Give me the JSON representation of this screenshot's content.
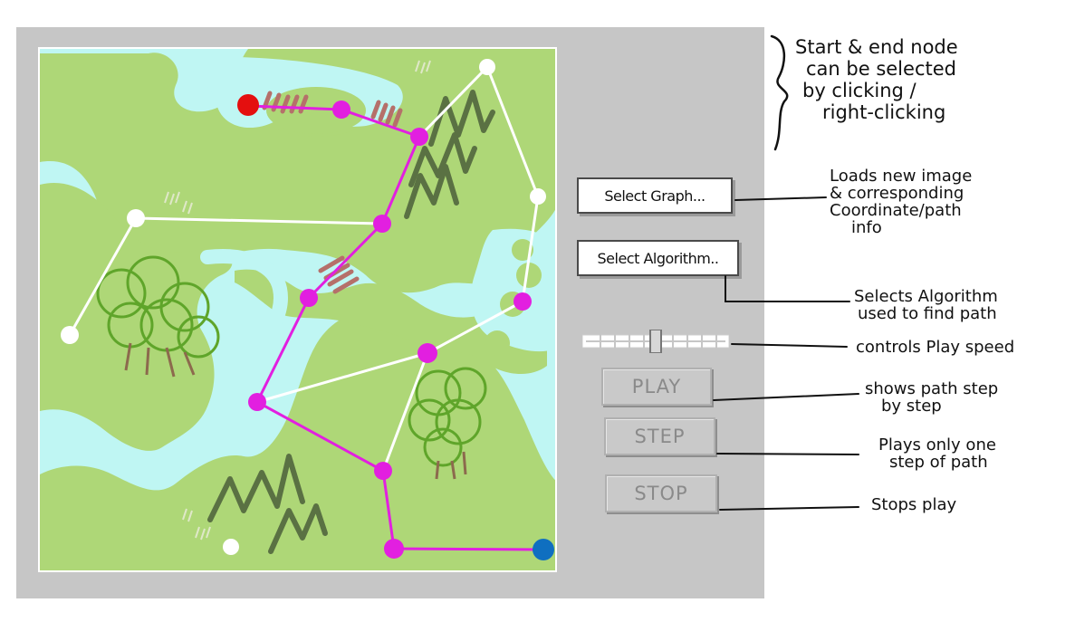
{
  "controls": {
    "select_graph_label": "Select Graph...",
    "select_algorithm_label": "Select Algorithm..",
    "play_label": "PLAY",
    "step_label": "STEP",
    "stop_label": "STOP",
    "speed_slider_level": 0.5
  },
  "annotations": {
    "select_nodes": [
      "Start & end node",
      "can be selected",
      "by clicking /",
      "right-clicking"
    ],
    "select_graph": [
      "Loads new image",
      "& corresponding",
      "Coordinate/path",
      "info"
    ],
    "select_algorithm": [
      "Selects Algorithm",
      "used to find path"
    ],
    "speed": [
      "controls Play speed"
    ],
    "play": [
      "shows path step",
      "by step"
    ],
    "step": [
      "Plays only one",
      "step of path"
    ],
    "stop": [
      "Stops play"
    ]
  },
  "colors": {
    "water": "#bff6f3",
    "land": "#aed777",
    "path_edge": "#e21fe0",
    "graph_edge": "#ffffff",
    "start_node": "#e40f0f",
    "end_node": "#0f6fc0",
    "path_node": "#e21fe0",
    "plain_node": "#ffffff",
    "window_bg": "#c6c6c6"
  }
}
